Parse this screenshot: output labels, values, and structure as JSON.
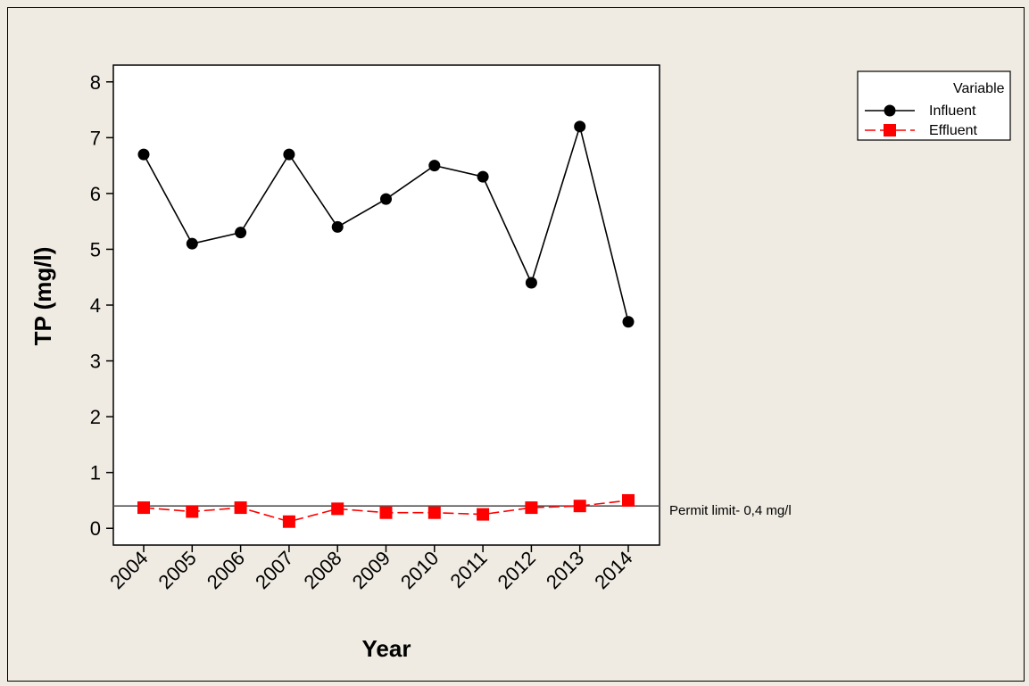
{
  "chart_data": {
    "type": "line",
    "xlabel": "Year",
    "ylabel": "TP (mg/l)",
    "categories": [
      "2004",
      "2005",
      "2006",
      "2007",
      "2008",
      "2009",
      "2010",
      "2011",
      "2012",
      "2013",
      "2014"
    ],
    "ylim": [
      -0.3,
      8.3
    ],
    "yticks": [
      0,
      1,
      2,
      3,
      4,
      5,
      6,
      7,
      8
    ],
    "series": [
      {
        "name": "Influent",
        "color": "#000000",
        "marker": "circle",
        "line": "solid",
        "values": [
          6.7,
          5.1,
          5.3,
          6.7,
          5.4,
          5.9,
          6.5,
          6.3,
          4.4,
          7.2,
          3.7
        ]
      },
      {
        "name": "Effluent",
        "color": "#ff0000",
        "marker": "square",
        "line": "dashed",
        "values": [
          0.37,
          0.3,
          0.37,
          0.12,
          0.35,
          0.28,
          0.28,
          0.25,
          0.37,
          0.4,
          0.5
        ]
      }
    ],
    "reference_line": {
      "value": 0.4,
      "label": "Permit limit- 0,4 mg/l"
    },
    "legend": {
      "title": "Variable",
      "placement": "top-right"
    },
    "grid": false
  }
}
